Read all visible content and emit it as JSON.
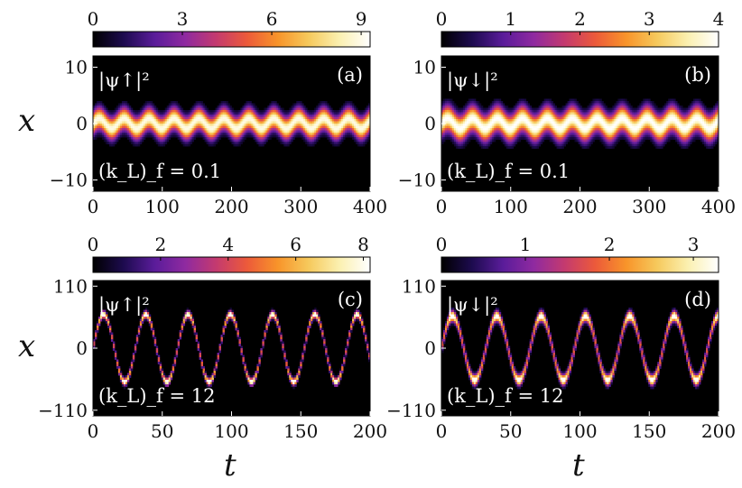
{
  "figure": {
    "xlabel": "t",
    "ylabel": "x"
  },
  "colormap": [
    "#000000",
    "#1d0b4f",
    "#5a1c9a",
    "#8f2aa0",
    "#c43a6f",
    "#ec5a3a",
    "#f8942a",
    "#f6c95c",
    "#fbf0b0",
    "#ffffff"
  ],
  "chart_data": [
    {
      "type": "heatmap",
      "panel": "(a)",
      "quantity": "|ψ↑|²",
      "param": "(k_L)_f = 0.1",
      "colorbar": {
        "ticks": [
          "0",
          "3",
          "6",
          "9"
        ],
        "range": [
          0,
          9.3
        ]
      },
      "x": {
        "ticks": [
          "0",
          "100",
          "200",
          "300",
          "400"
        ],
        "range": [
          0,
          400
        ]
      },
      "y": {
        "ticks": [
          "10",
          "0",
          "−10"
        ],
        "tick_values": [
          10,
          0,
          -10
        ],
        "range": [
          -12,
          12
        ]
      },
      "profile": {
        "amplitude": 0.9,
        "period": 36,
        "width": 1.9,
        "peak": 9
      }
    },
    {
      "type": "heatmap",
      "panel": "(b)",
      "quantity": "|ψ↓|²",
      "param": "(k_L)_f = 0.1",
      "colorbar": {
        "ticks": [
          "0",
          "1",
          "2",
          "3",
          "4"
        ],
        "range": [
          0,
          4.0
        ]
      },
      "x": {
        "ticks": [
          "0",
          "100",
          "200",
          "300",
          "400"
        ],
        "range": [
          0,
          400
        ]
      },
      "y": {
        "ticks": [
          "10",
          "0",
          "−10"
        ],
        "tick_values": [
          10,
          0,
          -10
        ],
        "range": [
          -12,
          12
        ]
      },
      "profile": {
        "amplitude": 0.9,
        "period": 36,
        "width": 2.2,
        "peak": 4
      }
    },
    {
      "type": "heatmap",
      "panel": "(c)",
      "quantity": "|ψ↑|²",
      "param": "(k_L)_f = 12",
      "colorbar": {
        "ticks": [
          "0",
          "2",
          "4",
          "6",
          "8"
        ],
        "range": [
          0,
          8.2
        ]
      },
      "x": {
        "ticks": [
          "0",
          "50",
          "100",
          "150",
          "200"
        ],
        "range": [
          0,
          200
        ]
      },
      "y": {
        "ticks": [
          "110",
          "0",
          "−110"
        ],
        "tick_values": [
          110,
          0,
          -110
        ],
        "range": [
          -120,
          120
        ]
      },
      "profile": {
        "amplitude": 60,
        "period": 30.5,
        "width": 6,
        "peak": 8
      }
    },
    {
      "type": "heatmap",
      "panel": "(d)",
      "quantity": "|ψ↓|²",
      "param": "(k_L)_f = 12",
      "colorbar": {
        "ticks": [
          "0",
          "1",
          "2",
          "3"
        ],
        "range": [
          0,
          3.3
        ]
      },
      "x": {
        "ticks": [
          "0",
          "50",
          "100",
          "150",
          "200"
        ],
        "range": [
          0,
          200
        ]
      },
      "y": {
        "ticks": [
          "110",
          "0",
          "−110"
        ],
        "tick_values": [
          110,
          0,
          -110
        ],
        "range": [
          -120,
          120
        ]
      },
      "profile": {
        "amplitude": 57,
        "period": 32,
        "width": 9,
        "peak": 3.3
      }
    }
  ]
}
